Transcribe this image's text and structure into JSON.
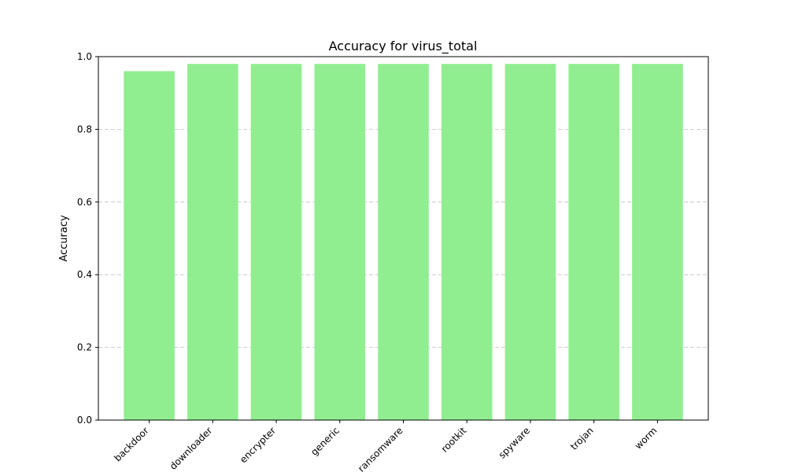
{
  "chart_data": {
    "type": "bar",
    "title": "Accuracy for virus_total",
    "xlabel": "",
    "ylabel": "Accuracy",
    "categories": [
      "backdoor",
      "downloader",
      "encrypter",
      "generic",
      "ransomware",
      "rootkit",
      "spyware",
      "trojan",
      "worm"
    ],
    "values": [
      0.96,
      0.98,
      0.98,
      0.98,
      0.98,
      0.98,
      0.98,
      0.98,
      0.98
    ],
    "ylim": [
      0,
      1.0
    ],
    "yticks": [
      "0.0",
      "0.2",
      "0.4",
      "0.6",
      "0.8",
      "1.0"
    ],
    "grid": "y-dashed",
    "bar_color": "#90ee90",
    "xtick_rotation": -45
  }
}
